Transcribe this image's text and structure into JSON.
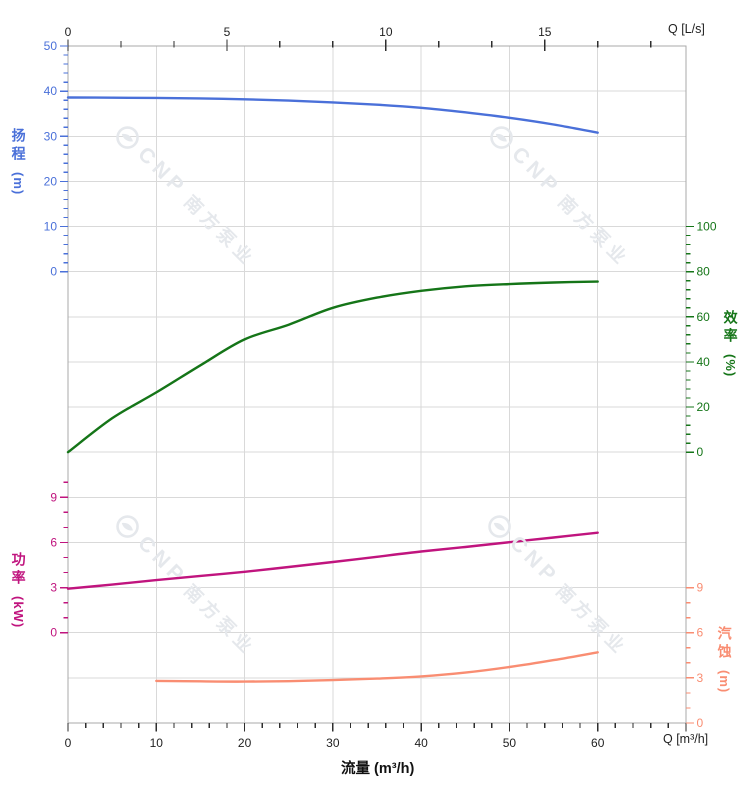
{
  "watermark": {
    "logo": "cnp-logo",
    "brand": "CNP",
    "brand_cn": "南方泵业",
    "color": "#e5e8ec"
  },
  "chart_data": {
    "type": "line",
    "title": "",
    "description": "Centrifugal pump performance curves: head, efficiency, shaft power and NPSH versus flow rate",
    "background": "#ffffff",
    "grid": {
      "on": true,
      "color": "#d9d9d9",
      "spine_color": "#a9a9a9",
      "tick_color": "#2e2e2e",
      "text_color": "#1f1f1f"
    },
    "x_bottom": {
      "label": "流量 (m³/h)",
      "corner_label": "Q [m³/h]",
      "unit": "m³/h",
      "min": 0,
      "max": 70,
      "major_ticks": [
        0,
        10,
        20,
        30,
        40,
        50,
        60,
        70
      ],
      "labeled_ticks": [
        0,
        10,
        20,
        30,
        40,
        50,
        60
      ],
      "minor_step": 2
    },
    "x_top": {
      "corner_label": "Q [L/s]",
      "unit": "L/s",
      "min": 0,
      "max": 19.44,
      "major_ticks": [
        0,
        5,
        10,
        15
      ],
      "minor_step": 1.6667,
      "ls_to_m3h": 3.6
    },
    "series": [
      {
        "id": "head",
        "label_cn": "扬程",
        "unit": "(m)",
        "color": "#4a70d9",
        "axis_side": "left",
        "axis_min": 0,
        "axis_max": 50,
        "major_ticks": [
          50,
          40,
          30,
          20,
          10,
          0
        ],
        "minor_step": 2,
        "minor_max": 50,
        "points": [
          [
            0,
            38.6
          ],
          [
            5,
            38.55
          ],
          [
            10,
            38.5
          ],
          [
            15,
            38.4
          ],
          [
            20,
            38.2
          ],
          [
            25,
            37.9
          ],
          [
            30,
            37.5
          ],
          [
            35,
            37.0
          ],
          [
            40,
            36.3
          ],
          [
            45,
            35.3
          ],
          [
            50,
            34.1
          ],
          [
            55,
            32.6
          ],
          [
            60,
            30.8
          ]
        ]
      },
      {
        "id": "efficiency",
        "label_cn": "效率",
        "unit": "(%)",
        "color": "#157518",
        "axis_side": "right",
        "axis_min": 0,
        "axis_max": 100,
        "major_ticks": [
          100,
          80,
          60,
          40,
          20,
          0
        ],
        "minor_step": 4,
        "minor_max": 100,
        "points": [
          [
            0,
            0
          ],
          [
            5,
            15
          ],
          [
            10,
            26.5
          ],
          [
            15,
            38.5
          ],
          [
            20,
            50
          ],
          [
            25,
            56.5
          ],
          [
            30,
            64
          ],
          [
            35,
            68.5
          ],
          [
            40,
            71.5
          ],
          [
            45,
            73.5
          ],
          [
            50,
            74.5
          ],
          [
            55,
            75.2
          ],
          [
            60,
            75.6
          ]
        ]
      },
      {
        "id": "power",
        "label_cn": "功率",
        "unit": "(kW)",
        "color": "#c0147e",
        "axis_side": "left",
        "axis_min": 0,
        "axis_max": 9,
        "major_ticks": [
          9,
          6,
          3,
          0
        ],
        "minor_step": 1,
        "minor_max": 10,
        "points": [
          [
            0,
            2.93
          ],
          [
            5,
            3.2
          ],
          [
            10,
            3.5
          ],
          [
            15,
            3.78
          ],
          [
            20,
            4.05
          ],
          [
            25,
            4.37
          ],
          [
            30,
            4.7
          ],
          [
            35,
            5.05
          ],
          [
            40,
            5.4
          ],
          [
            45,
            5.7
          ],
          [
            50,
            6.02
          ],
          [
            55,
            6.33
          ],
          [
            60,
            6.65
          ]
        ]
      },
      {
        "id": "npsh",
        "label_cn": "汽蚀",
        "unit": "(m)",
        "color": "#f98d72",
        "axis_side": "right",
        "axis_min": 0,
        "axis_max": 9,
        "major_ticks": [
          9,
          6,
          3,
          0
        ],
        "minor_step": 1,
        "minor_max": 9,
        "points": [
          [
            10,
            2.8
          ],
          [
            15,
            2.77
          ],
          [
            20,
            2.75
          ],
          [
            25,
            2.78
          ],
          [
            30,
            2.85
          ],
          [
            35,
            2.95
          ],
          [
            40,
            3.1
          ],
          [
            45,
            3.35
          ],
          [
            50,
            3.72
          ],
          [
            55,
            4.18
          ],
          [
            60,
            4.7
          ]
        ]
      }
    ]
  }
}
